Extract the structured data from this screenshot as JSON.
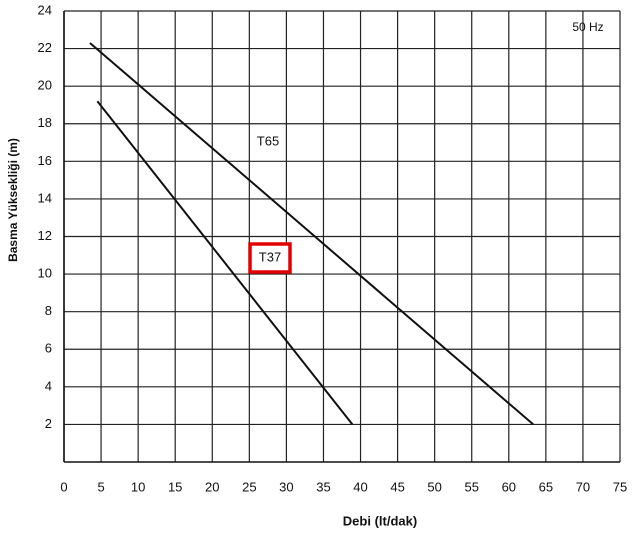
{
  "chart_data": {
    "type": "line",
    "x_label": "Debi (lt/dak)",
    "y_label": "Basma Yüksekliği (m)",
    "annotation": "50 Hz",
    "series": [
      {
        "name": "T65",
        "color": "#111111",
        "x": [
          3.5,
          63.3
        ],
        "values": [
          22.3,
          2
        ]
      },
      {
        "name": "T37",
        "color": "#111111",
        "x": [
          4.5,
          38.9
        ],
        "values": [
          19.2,
          2
        ]
      }
    ],
    "highlight_color": "#e00000",
    "xlim": [
      0,
      75
    ],
    "xticks": [
      0,
      5,
      10,
      15,
      20,
      25,
      30,
      35,
      40,
      45,
      50,
      55,
      60,
      65,
      70,
      75
    ],
    "ylim": [
      0,
      24
    ],
    "yticks": [
      2,
      4,
      6,
      8,
      10,
      12,
      14,
      16,
      18,
      20,
      22,
      24
    ],
    "grid": true
  }
}
